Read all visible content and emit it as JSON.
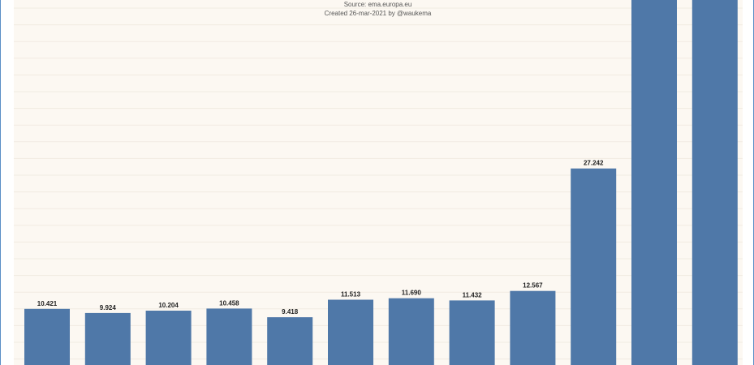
{
  "caption": {
    "source": "Source: ema.europa.eu",
    "created": "Created 26-mar-2021 by @waukema"
  },
  "colors": {
    "bar": "#4f78a8",
    "background": "#fcf8f2",
    "frame": "#5b8fc6"
  },
  "chart_data": {
    "type": "bar",
    "title": "",
    "xlabel": "",
    "ylabel": "",
    "grid": false,
    "categories": [
      "",
      "",
      "",
      "",
      "",
      "",
      "",
      "",
      "",
      "",
      "",
      ""
    ],
    "values": [
      10.421,
      9.924,
      10.204,
      10.458,
      9.418,
      11.513,
      11.69,
      11.432,
      12.567,
      27.242,
      null,
      null
    ],
    "value_labels": [
      "10.421",
      "9.924",
      "10.204",
      "10.458",
      "9.418",
      "11.513",
      "11.690",
      "11.432",
      "12.567",
      "27.242",
      "",
      ""
    ],
    "clipped_beyond_top": [
      false,
      false,
      false,
      false,
      false,
      false,
      false,
      false,
      false,
      false,
      true,
      true
    ],
    "ylim": [
      0,
      43
    ]
  }
}
